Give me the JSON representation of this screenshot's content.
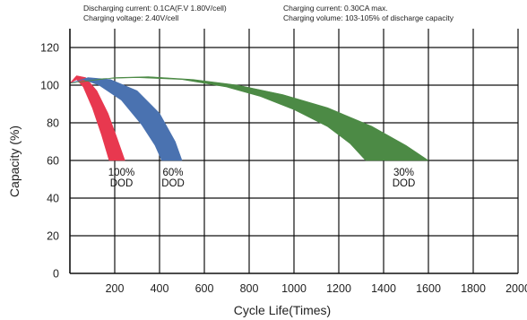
{
  "header": {
    "discharging_current": "Discharging current: 0.1CA(F.V 1.80V/cell)",
    "charging_voltage": "Charging voltage: 2.40V/cell",
    "charging_current": "Charging current: 0.30CA max.",
    "charging_volume": "Charging volume: 103-105% of discharge capacity"
  },
  "chart_data": {
    "type": "area",
    "xlabel": "Cycle Life(Times)",
    "ylabel": "Capacity (%)",
    "xlim": [
      0,
      2000
    ],
    "ylim": [
      0,
      130
    ],
    "x_ticks": [
      200,
      400,
      600,
      800,
      1000,
      1200,
      1400,
      1600,
      1800,
      2000
    ],
    "y_ticks": [
      0,
      20,
      40,
      60,
      80,
      100,
      120
    ],
    "grid": true,
    "series": [
      {
        "name": "100% DOD",
        "label_lines": [
          "100%",
          "DOD"
        ],
        "label_at": [
          230,
          52
        ],
        "color": "#e8384f",
        "upper": [
          [
            0,
            101
          ],
          [
            30,
            105
          ],
          [
            70,
            104
          ],
          [
            120,
            97
          ],
          [
            170,
            85
          ],
          [
            210,
            72
          ],
          [
            245,
            60
          ]
        ],
        "lower": [
          [
            0,
            101
          ],
          [
            30,
            103
          ],
          [
            60,
            99
          ],
          [
            100,
            88
          ],
          [
            140,
            74
          ],
          [
            175,
            60
          ]
        ]
      },
      {
        "name": "60% DOD",
        "label_lines": [
          "60%",
          "DOD"
        ],
        "label_at": [
          460,
          52
        ],
        "color": "#4a72b0",
        "upper": [
          [
            0,
            101
          ],
          [
            80,
            104
          ],
          [
            180,
            103
          ],
          [
            300,
            97
          ],
          [
            400,
            85
          ],
          [
            470,
            70
          ],
          [
            500,
            60
          ]
        ],
        "lower": [
          [
            0,
            101
          ],
          [
            60,
            103
          ],
          [
            130,
            100
          ],
          [
            230,
            92
          ],
          [
            320,
            79
          ],
          [
            380,
            68
          ],
          [
            410,
            60
          ]
        ]
      },
      {
        "name": "30% DOD",
        "label_lines": [
          "30%",
          "DOD"
        ],
        "label_at": [
          1490,
          52
        ],
        "color": "#4c8a45",
        "upper": [
          [
            0,
            101
          ],
          [
            200,
            104
          ],
          [
            350,
            104.5
          ],
          [
            550,
            103
          ],
          [
            750,
            100
          ],
          [
            950,
            95
          ],
          [
            1150,
            88
          ],
          [
            1350,
            78
          ],
          [
            1500,
            68
          ],
          [
            1600,
            60
          ]
        ],
        "lower": [
          [
            0,
            101
          ],
          [
            150,
            103.5
          ],
          [
            300,
            104
          ],
          [
            500,
            103
          ],
          [
            700,
            99
          ],
          [
            850,
            94
          ],
          [
            1000,
            87
          ],
          [
            1150,
            78
          ],
          [
            1250,
            69
          ],
          [
            1320,
            60
          ]
        ]
      }
    ]
  }
}
